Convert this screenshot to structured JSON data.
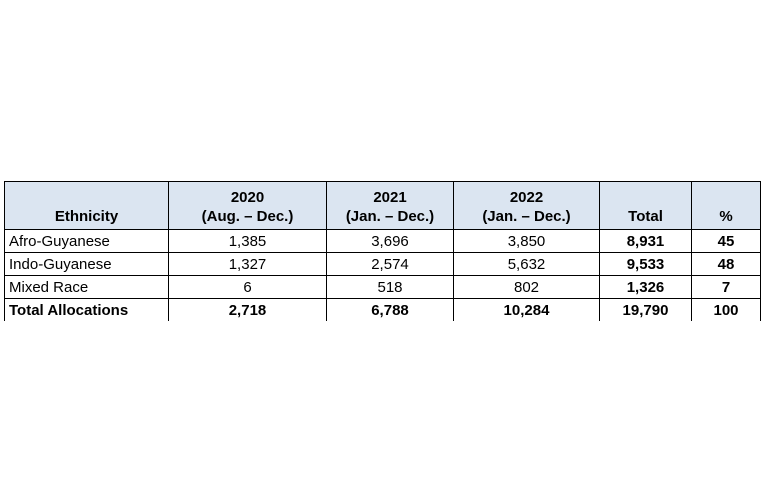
{
  "table": {
    "headers": [
      {
        "year": "",
        "range": "Ethnicity"
      },
      {
        "year": "2020",
        "range": "(Aug. – Dec.)"
      },
      {
        "year": "2021",
        "range": "(Jan. – Dec.)"
      },
      {
        "year": "2022",
        "range": "(Jan. – Dec.)"
      },
      {
        "year": "",
        "range": "Total"
      },
      {
        "year": "",
        "range": "%"
      }
    ],
    "rows": [
      {
        "ethnicity": "Afro-Guyanese",
        "y2020": "1,385",
        "y2021": "3,696",
        "y2022": "3,850",
        "total": "8,931",
        "percent": "45"
      },
      {
        "ethnicity": "Indo-Guyanese",
        "y2020": "1,327",
        "y2021": "2,574",
        "y2022": "5,632",
        "total": "9,533",
        "percent": "48"
      },
      {
        "ethnicity": "Mixed Race",
        "y2020": "6",
        "y2021": "518",
        "y2022": "802",
        "total": "1,326",
        "percent": "7"
      },
      {
        "ethnicity": "Total Allocations",
        "y2020": "2,718",
        "y2021": "6,788",
        "y2022": "10,284",
        "total": "19,790",
        "percent": "100"
      }
    ]
  }
}
